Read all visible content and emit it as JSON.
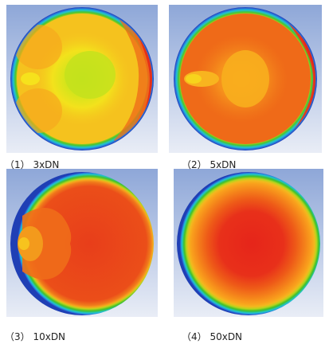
{
  "panels": [
    {
      "caption": "（1） 3xDN"
    },
    {
      "caption": "（2） 5xDN"
    },
    {
      "caption": "（3） 10xDN"
    },
    {
      "caption": "（4） 50xDN"
    }
  ],
  "colors": {
    "background_top": "#8ea7d8",
    "background_bottom": "#e9edf6",
    "ring_outer": "#1f3fb5",
    "ring_cyan": "#18c4d8",
    "ring_green": "#3fbf2a",
    "ring_lime": "#b6d21e",
    "red": "#e4331a",
    "orange": "#ef6a16",
    "orange_light": "#f79a1e",
    "yellow": "#f7e11c",
    "yellow_green": "#c6e31c"
  }
}
